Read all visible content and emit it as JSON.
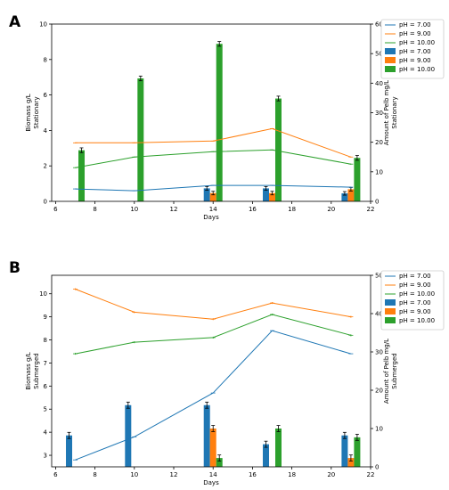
{
  "panels": [
    "A",
    "B"
  ],
  "chart_data": [
    {
      "type": "bar+line",
      "panel": "A",
      "xlabel": "Days",
      "ylabel_left": [
        "Biomass g/L",
        "Stationary"
      ],
      "ylabel_right": [
        "Amount of Pelb mg/L",
        "Stationary"
      ],
      "xlim": [
        5.8,
        22
      ],
      "ylim_left": [
        0,
        10
      ],
      "ylim_right": [
        0,
        60
      ],
      "xticks": [
        6,
        8,
        10,
        12,
        14,
        16,
        18,
        20,
        22
      ],
      "yticks_left": [
        0,
        2,
        4,
        6,
        8,
        10
      ],
      "yticks_right": [
        0,
        10,
        20,
        30,
        40,
        50,
        60
      ],
      "legend_position": "top-right",
      "legend_labels": [
        "pH = 7.00",
        "pH = 9.00",
        "pH = 10.00",
        "pH = 7.00",
        "pH = 9.00",
        "pH = 10.00"
      ],
      "line_series": [
        {
          "name": "pH = 7.00",
          "color": "#1f77b4",
          "x": [
            7,
            10,
            14,
            17,
            21
          ],
          "y": [
            0.7,
            0.6,
            0.9,
            0.9,
            0.8
          ],
          "err": [
            0.1,
            0.1,
            0.1,
            0.1,
            0.1
          ]
        },
        {
          "name": "pH = 9.00",
          "color": "#ff7f0e",
          "x": [
            7,
            10,
            14,
            17,
            21
          ],
          "y": [
            3.3,
            3.3,
            3.4,
            4.1,
            2.5
          ],
          "err": [
            0.1,
            0.1,
            0.1,
            0.1,
            0.1
          ]
        },
        {
          "name": "pH = 10.00",
          "color": "#2ca02c",
          "x": [
            7,
            10,
            14,
            17,
            21
          ],
          "y": [
            1.9,
            2.5,
            2.8,
            2.9,
            2.1
          ],
          "err": [
            0.1,
            0.1,
            0.1,
            0.1,
            0.1
          ]
        }
      ],
      "bar_series": [
        {
          "name": "pH = 7.00",
          "color": "#1f77b4",
          "x": [
            7,
            10,
            14,
            17,
            21
          ],
          "y": [
            0,
            0,
            4.4,
            4.4,
            2.7
          ],
          "err": [
            0,
            0,
            0.6,
            0.6,
            0.6
          ]
        },
        {
          "name": "pH = 9.00",
          "color": "#ff7f0e",
          "x": [
            7,
            10,
            14,
            17,
            21
          ],
          "y": [
            0,
            0,
            2.8,
            2.8,
            4.1
          ],
          "err": [
            0,
            0,
            0.6,
            0.6,
            0.6
          ]
        },
        {
          "name": "pH = 10.00",
          "color": "#2ca02c",
          "x": [
            7,
            10,
            14,
            17,
            21
          ],
          "y": [
            17.3,
            41.6,
            53.3,
            34.8,
            14.7
          ],
          "err": [
            0.8,
            0.8,
            0.8,
            0.8,
            0.8
          ]
        }
      ]
    },
    {
      "type": "bar+line",
      "panel": "B",
      "xlabel": "Days",
      "ylabel_left": [
        "Biomass g/L",
        "Submerged"
      ],
      "ylabel_right": [
        "Amount of Pelb mg/L",
        "Submerged"
      ],
      "xlim": [
        5.8,
        22
      ],
      "ylim_left": [
        2.5,
        10.8
      ],
      "ylim_right": [
        0,
        50
      ],
      "xticks": [
        6,
        8,
        10,
        12,
        14,
        16,
        18,
        20,
        22
      ],
      "yticks_left": [
        3,
        4,
        5,
        6,
        7,
        8,
        9,
        10
      ],
      "yticks_right": [
        0,
        10,
        20,
        30,
        40,
        50
      ],
      "legend_position": "top-right",
      "legend_labels": [
        "pH = 7.00",
        "pH = 9.00",
        "pH = 10.00",
        "pH = 7.00",
        "pH = 9.00",
        "pH = 10.00"
      ],
      "line_series": [
        {
          "name": "pH = 7.00",
          "color": "#1f77b4",
          "x": [
            7,
            10,
            14,
            17,
            21
          ],
          "y": [
            2.8,
            3.8,
            5.7,
            8.4,
            7.4
          ],
          "err": [
            0.05,
            0.05,
            0.05,
            0.05,
            0.05
          ]
        },
        {
          "name": "pH = 9.00",
          "color": "#ff7f0e",
          "x": [
            7,
            10,
            14,
            17,
            21
          ],
          "y": [
            10.2,
            9.2,
            8.9,
            9.6,
            9.0
          ],
          "err": [
            0.1,
            0.1,
            0.1,
            0.1,
            0.1
          ]
        },
        {
          "name": "pH = 10.00",
          "color": "#2ca02c",
          "x": [
            7,
            10,
            14,
            17,
            21
          ],
          "y": [
            7.4,
            7.9,
            8.1,
            9.1,
            8.2
          ],
          "err": [
            0.1,
            0.1,
            0.1,
            0.1,
            0.1
          ]
        }
      ],
      "bar_series": [
        {
          "name": "pH = 7.00",
          "color": "#1f77b4",
          "x": [
            7,
            10,
            14,
            17,
            21
          ],
          "y": [
            8.2,
            16.1,
            16.1,
            5.9,
            8.2
          ],
          "err": [
            0.8,
            0.8,
            0.8,
            0.8,
            0.8
          ]
        },
        {
          "name": "pH = 9.00",
          "color": "#ff7f0e",
          "x": [
            7,
            10,
            14,
            17,
            21
          ],
          "y": [
            0,
            0,
            10.0,
            0,
            2.3
          ],
          "err": [
            0,
            0,
            0.8,
            0,
            0.8
          ]
        },
        {
          "name": "pH = 10.00",
          "color": "#2ca02c",
          "x": [
            7,
            10,
            14,
            17,
            21
          ],
          "y": [
            0,
            0,
            2.3,
            10.0,
            7.7
          ],
          "err": [
            0,
            0,
            0.8,
            0.8,
            0.8
          ]
        }
      ]
    }
  ]
}
